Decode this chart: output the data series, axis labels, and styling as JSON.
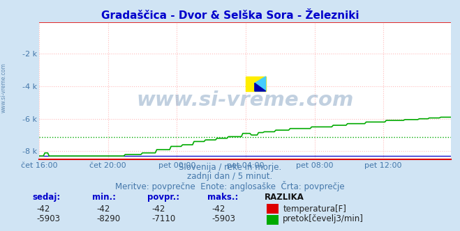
{
  "title": "Gradaščica - Dvor & Selška Sora - Železniki",
  "title_color": "#0000cc",
  "background_color": "#d0e4f4",
  "plot_bg_color": "#ffffff",
  "grid_color": "#ffbbbb",
  "text_color": "#4477aa",
  "ylim": [
    -8500,
    -42
  ],
  "yticks": [
    -2000,
    -4000,
    -6000,
    -8000
  ],
  "ytick_labels": [
    "-2 k",
    "-4 k",
    "-6 k",
    "-8 k"
  ],
  "xtick_positions": [
    0,
    48,
    96,
    144,
    192,
    240
  ],
  "xtick_labels": [
    "čet 16:00",
    "čet 20:00",
    "pet 00:00",
    "pet 04:00",
    "pet 08:00",
    "pet 12:00"
  ],
  "n": 288,
  "red_line_y": -42,
  "green_avg_y": -7110,
  "blue_line_y": -8290,
  "temp_color": "#dd0000",
  "flow_color": "#00aa00",
  "blue_color": "#0000cc",
  "subtitle1": "Slovenija / reke in morje.",
  "subtitle2": "zadnji dan / 5 minut.",
  "subtitle3": "Meritve: povprečne  Enote: anglosaške  Črta: povprečje",
  "temp_label": "temperatura[F]",
  "flow_label": "pretok[čevelj3/min]",
  "watermark": "www.si-vreme.com",
  "col_headers": [
    "sedaj:",
    "min.:",
    "povpr.:",
    "maks.:",
    "RAZLIKA"
  ],
  "temp_row": [
    "-42",
    "-42",
    "-42",
    "-42"
  ],
  "flow_row": [
    "-5903",
    "-8290",
    "-7110",
    "-5903"
  ]
}
